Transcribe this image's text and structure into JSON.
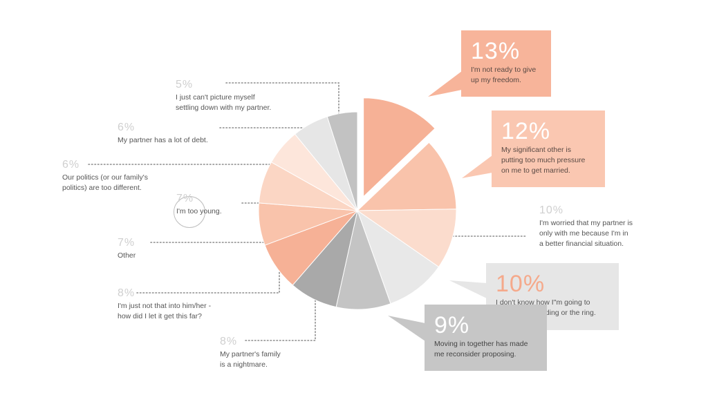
{
  "colors": {
    "peach_dark": "#f6ad8f",
    "peach_mid": "#f9bfa6",
    "peach_light": "#fbd6c4",
    "peach_pale": "#fde4d8",
    "grey_dark": "#a6a6a6",
    "grey_mid": "#bfbfbf",
    "grey_light": "#dedede",
    "grey_pale": "#ebebeb"
  },
  "chart_data": {
    "type": "pie",
    "slices": [
      {
        "label": "I'm not ready to give\nup my freedom.",
        "value": 13,
        "display": "13%",
        "color": "#f6b196",
        "exploded": true
      },
      {
        "label": "My significant other is\nputting too much pressure\non me to get married.",
        "value": 12,
        "display": "12%",
        "color": "#f9c3ab"
      },
      {
        "label": "I'm worried that my partner is\nonly with me because I'm in\na better financial situation.",
        "value": 10,
        "display": "10%",
        "color": "#fbdccd"
      },
      {
        "label": "I don't know how I\"m going to\npay for the wedding or the ring.",
        "value": 10,
        "display": "10%",
        "color": "#e8e8e8"
      },
      {
        "label": "Moving in together has made\nme reconsider proposing.",
        "value": 9,
        "display": "9%",
        "color": "#c4c4c4"
      },
      {
        "label": "My partner's family\nis a nightmare.",
        "value": 8,
        "display": "8%",
        "color": "#a9a9a9"
      },
      {
        "label": "I'm just not that into him/her -\nhow did I let it get this far?",
        "value": 8,
        "display": "8%",
        "color": "#f6b196"
      },
      {
        "label": "Other",
        "value": 7,
        "display": "7%",
        "color": "#f9c3ab"
      },
      {
        "label": "I'm too young.",
        "value": 7,
        "display": "7%",
        "color": "#fbd6c4"
      },
      {
        "label": "Our politics (or our family's\npolitics) are too different.",
        "value": 6,
        "display": "6%",
        "color": "#fde6db"
      },
      {
        "label": "My partner has a lot of debt.",
        "value": 6,
        "display": "6%",
        "color": "#e6e6e6"
      },
      {
        "label": "I just can't picture myself\nsettling down with my partner.",
        "value": 5,
        "display": "5%",
        "color": "#c2c2c2"
      }
    ]
  },
  "callouts": [
    {
      "pct": "13%",
      "text": "I'm not ready to give\nup my freedom.",
      "bg": "#f7b49a",
      "text_color": "#5a4a44"
    },
    {
      "pct": "12%",
      "text": "My significant other is\nputting too much pressure\non me to get married.",
      "bg": "#fac7b1",
      "text_color": "#5a4a44"
    },
    {
      "pct": "10%",
      "text": "I don't know how I\"m going to\npay for the wedding or the ring.",
      "bg": "#e6e6e6",
      "text_color": "#555555",
      "pct_color": "#f5a98b"
    },
    {
      "pct": "9%",
      "text": "Moving in together has made\nme reconsider proposing.",
      "bg": "#c6c6c6",
      "text_color": "#444444"
    }
  ],
  "labels": [
    {
      "pct": "5%",
      "text": "I just can't picture myself\nsettling down with my partner."
    },
    {
      "pct": "6%",
      "text": "My partner has a lot of debt."
    },
    {
      "pct": "6%",
      "text": "Our politics (or our family's\npolitics) are too different."
    },
    {
      "pct": "7%",
      "text": "I'm too young."
    },
    {
      "pct": "7%",
      "text": "Other"
    },
    {
      "pct": "8%",
      "text": "I'm just not that into him/her -\nhow did I let it get this far?"
    },
    {
      "pct": "8%",
      "text": "My partner's family\nis a nightmare."
    },
    {
      "pct": "10%",
      "text": "I'm worried that my partner is\nonly with me because I'm in\na better financial situation."
    }
  ]
}
